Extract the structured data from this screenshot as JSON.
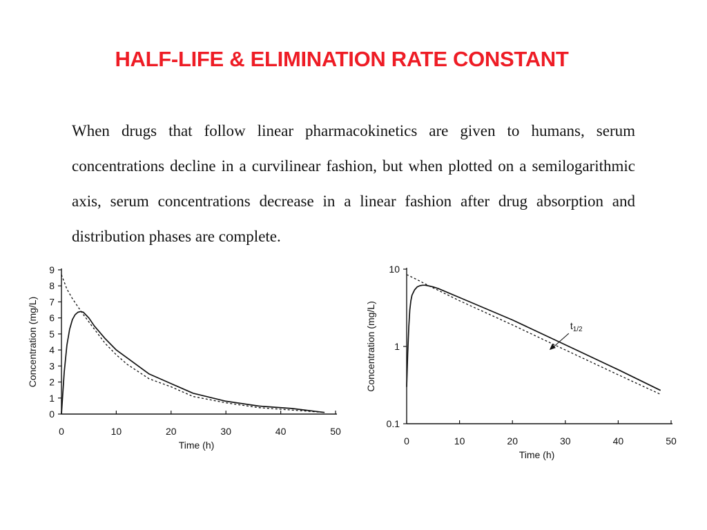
{
  "title": "HALF-LIFE & ELIMINATION RATE CONSTANT",
  "title_color": "#ee1c25",
  "paragraph": "When drugs that follow linear pharmacokinetics are given to humans, serum concentrations decline in a curvilinear fashion, but when plotted on a semilogarithmic axis, serum concentrations decrease in a linear fashion after drug absorption and distribution phases are complete.",
  "chart_data": [
    {
      "type": "line",
      "scale": "linear",
      "xlabel": "Time (h)",
      "ylabel": "Concentration (mg/L)",
      "xlim": [
        0,
        50
      ],
      "ylim": [
        0,
        9
      ],
      "xticks": [
        0,
        10,
        20,
        30,
        40,
        50
      ],
      "yticks": [
        0,
        1,
        2,
        3,
        4,
        5,
        6,
        7,
        8,
        9
      ],
      "grid": false,
      "series": [
        {
          "style": "solid",
          "x": [
            0,
            0.5,
            1,
            1.5,
            2,
            2.5,
            3,
            3.5,
            4,
            5,
            6,
            8,
            10,
            12,
            16,
            20,
            24,
            30,
            36,
            42,
            48
          ],
          "y": [
            0,
            2.6,
            4.3,
            5.3,
            5.9,
            6.2,
            6.35,
            6.4,
            6.35,
            6.0,
            5.5,
            4.7,
            4.0,
            3.5,
            2.5,
            1.9,
            1.3,
            0.8,
            0.5,
            0.35,
            0.1
          ]
        },
        {
          "style": "dashed",
          "x": [
            0,
            1,
            2,
            3,
            4,
            6,
            8,
            10,
            12,
            16,
            20,
            24,
            30,
            36,
            42,
            48
          ],
          "y": [
            8.7,
            7.8,
            7.2,
            6.7,
            6.2,
            5.3,
            4.4,
            3.7,
            3.1,
            2.2,
            1.7,
            1.1,
            0.7,
            0.4,
            0.25,
            0.1
          ]
        }
      ]
    },
    {
      "type": "line",
      "scale": "log",
      "xlabel": "Time (h)",
      "ylabel": "Concentration (mg/L)",
      "xlim": [
        0,
        50
      ],
      "ylim": [
        0.1,
        10
      ],
      "xticks": [
        0,
        10,
        20,
        30,
        40,
        50
      ],
      "yticks": [
        0.1,
        1,
        10
      ],
      "ytick_labels": [
        "0.1",
        "1",
        "10"
      ],
      "grid": false,
      "annotation": {
        "text": "t",
        "subscript": "1/2",
        "target": [
          27,
          0.9
        ]
      },
      "series": [
        {
          "style": "solid",
          "x": [
            0,
            0.2,
            0.4,
            0.6,
            0.8,
            1,
            1.5,
            2,
            2.5,
            3,
            3.5,
            4,
            5,
            6,
            8,
            10,
            20,
            30,
            40,
            48
          ],
          "y": [
            0.3,
            0.8,
            1.8,
            3.0,
            3.9,
            4.6,
            5.4,
            5.9,
            6.1,
            6.2,
            6.2,
            6.1,
            5.9,
            5.6,
            4.9,
            4.3,
            2.2,
            1.05,
            0.5,
            0.27
          ]
        },
        {
          "style": "dashed",
          "x": [
            0,
            2,
            4,
            10,
            20,
            30,
            40,
            48
          ],
          "y": [
            8.5,
            7.3,
            6.2,
            3.9,
            1.9,
            0.9,
            0.43,
            0.24
          ]
        }
      ]
    }
  ]
}
